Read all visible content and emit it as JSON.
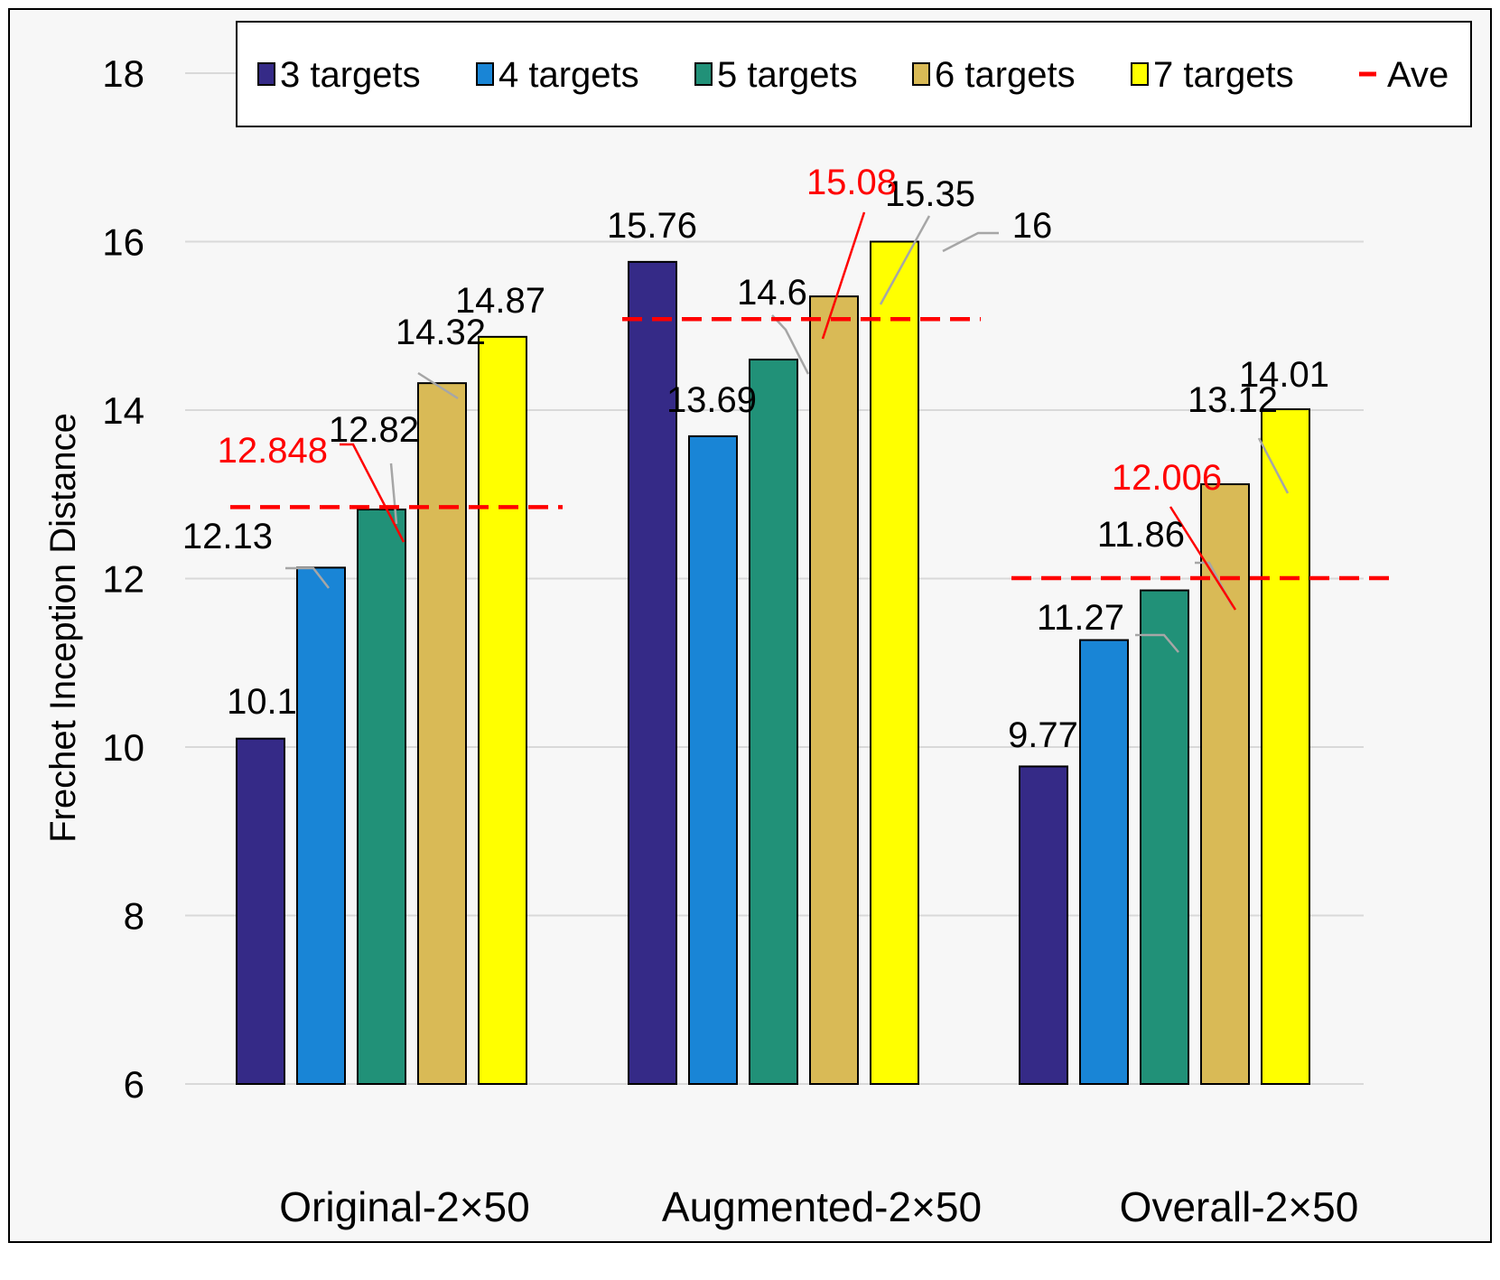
{
  "chart_data": {
    "type": "bar",
    "ylabel": "Frechet Inception Distance",
    "xlabel": "",
    "ylim": [
      6,
      18
    ],
    "yticks": [
      "6",
      "8",
      "10",
      "12",
      "14",
      "16",
      "18"
    ],
    "grid": true,
    "legend_position": "top",
    "categories": [
      "Original-2×50",
      "Augmented-2×50",
      "Overall-2×50"
    ],
    "series": [
      {
        "name": "3 targets",
        "color": "#352a87",
        "values": [
          10.1,
          15.76,
          9.77
        ],
        "labels": [
          "10.1",
          "15.76",
          "9.77"
        ]
      },
      {
        "name": "4 targets",
        "color": "#1985d6",
        "values": [
          12.13,
          13.69,
          11.27
        ],
        "labels": [
          "12.13",
          "13.69",
          "11.27"
        ]
      },
      {
        "name": "5 targets",
        "color": "#219178",
        "values": [
          12.82,
          14.6,
          11.86
        ],
        "labels": [
          "12.82",
          "14.6",
          "11.86"
        ]
      },
      {
        "name": "6 targets",
        "color": "#d9ba56",
        "values": [
          14.32,
          15.35,
          13.12
        ],
        "labels": [
          "14.32",
          "15.35",
          "13.12"
        ]
      },
      {
        "name": "7 targets",
        "color": "#ffff00",
        "values": [
          14.87,
          16,
          14.01
        ],
        "labels": [
          "14.87",
          "16",
          "14.01"
        ]
      }
    ],
    "average": {
      "name": "Ave",
      "color": "#ff0000",
      "values": [
        12.848,
        15.08,
        12.006
      ],
      "labels": [
        "12.848",
        "15.08",
        "12.006"
      ]
    }
  }
}
